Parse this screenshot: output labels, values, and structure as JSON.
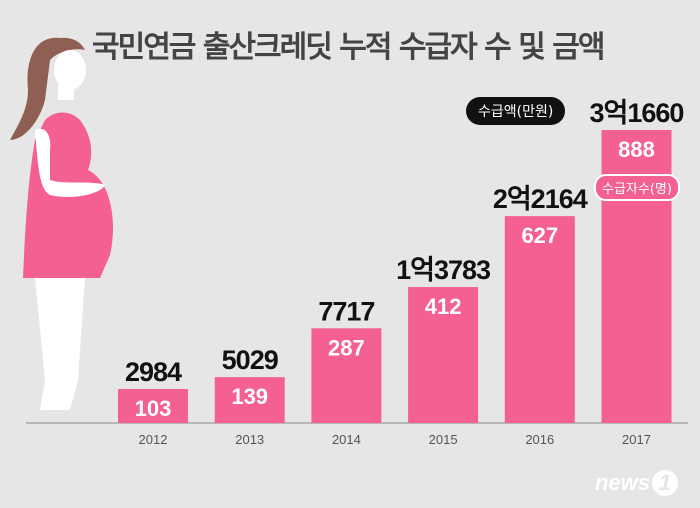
{
  "chart_data": {
    "type": "bar",
    "title": "국민연금 출산크레딧 누적 수급자 수 및 금액",
    "categories": [
      "2012",
      "2013",
      "2014",
      "2015",
      "2016",
      "2017"
    ],
    "series": [
      {
        "name": "수급자수(명)",
        "values": [
          103,
          139,
          287,
          412,
          627,
          888
        ]
      },
      {
        "name": "수급액(만원)",
        "values": [
          2984,
          5029,
          7717,
          13783,
          22164,
          31660
        ],
        "labels": [
          "2984",
          "5029",
          "7717",
          "1억3783",
          "2억2164",
          "3억1660"
        ]
      }
    ],
    "ylim": [
      0,
      900
    ],
    "grid": false,
    "legend": "top-right",
    "colors": {
      "bar": "#f4608f",
      "background": "#e6e6e6"
    }
  },
  "legend": {
    "amount": "수급액(만원)",
    "count": "수급자수(명)"
  },
  "logo": {
    "text": "news",
    "mark": "1"
  }
}
